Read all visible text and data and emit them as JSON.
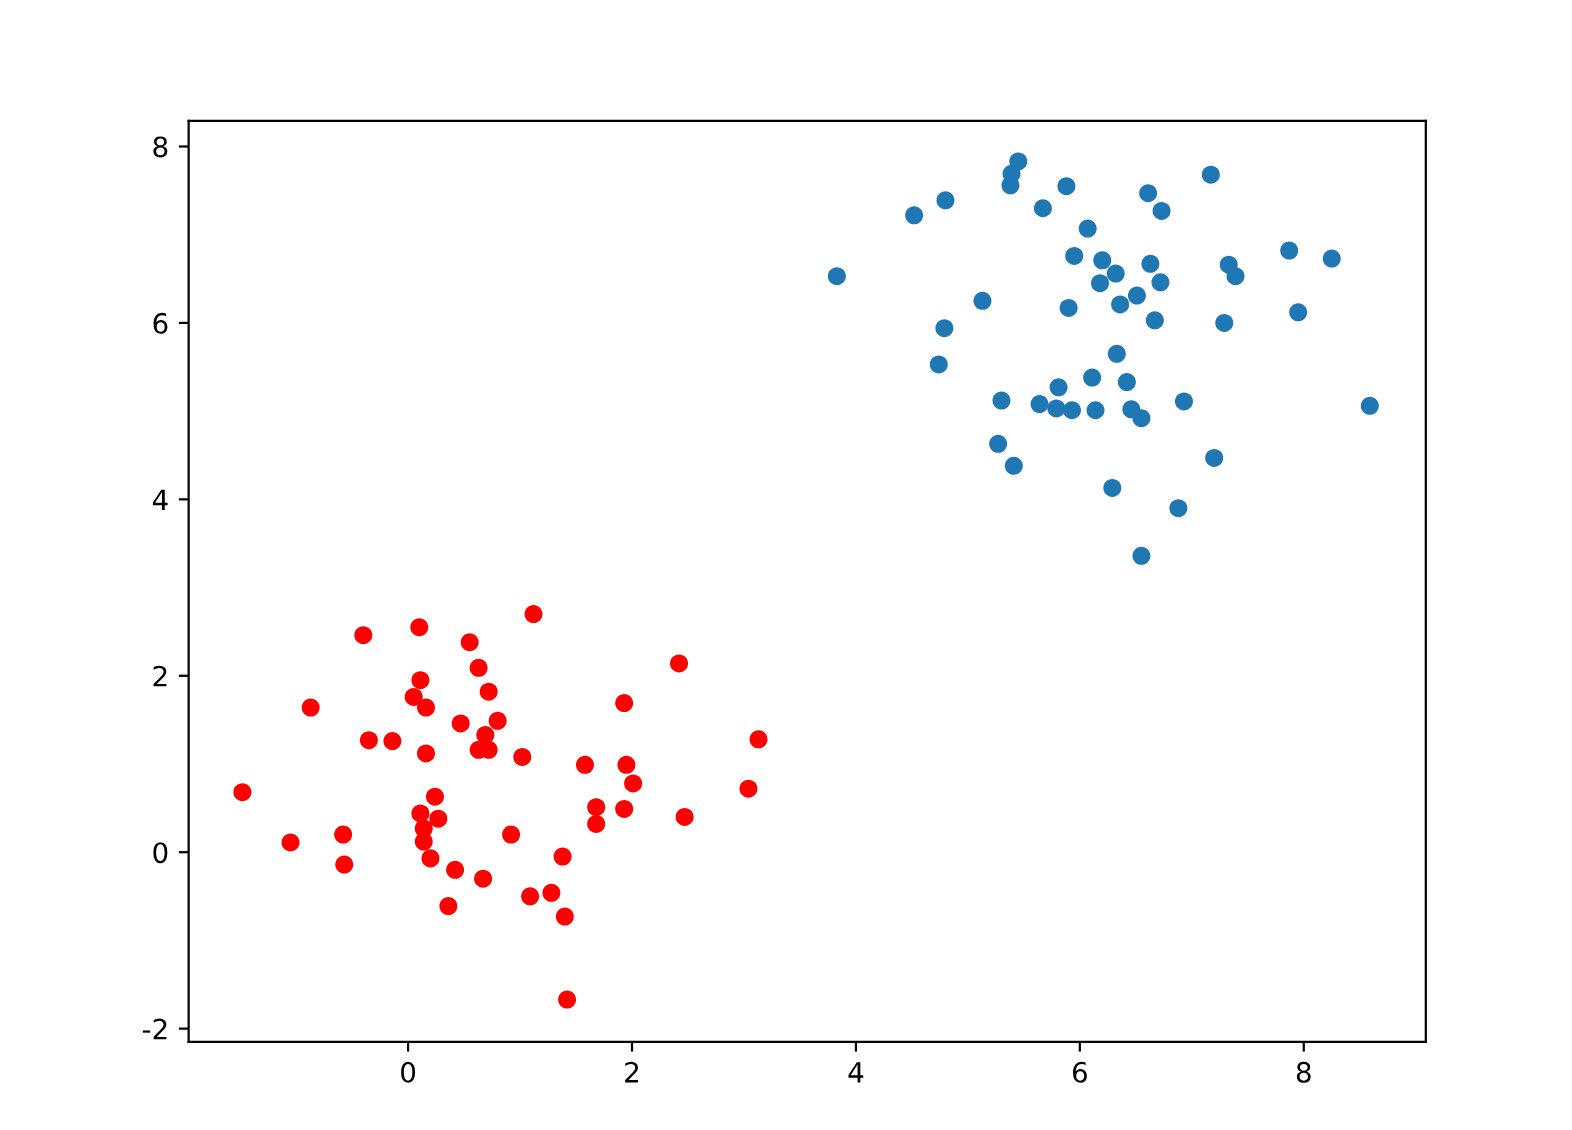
{
  "chart_data": {
    "type": "scatter",
    "xlim": [
      -1.96,
      9.09
    ],
    "ylim": [
      -2.15,
      8.29
    ],
    "xticks": [
      0,
      2,
      4,
      6,
      8
    ],
    "yticks": [
      -2,
      0,
      2,
      4,
      6,
      8
    ],
    "grid": false,
    "marker": "circle",
    "series": [
      {
        "color": "#ff0000",
        "x": [
          1.12,
          -0.4,
          0.1,
          0.55,
          0.63,
          2.42,
          0.11,
          0.05,
          0.16,
          0.72,
          -0.87,
          1.93,
          0.47,
          0.8,
          0.69,
          0.63,
          0.72,
          -0.35,
          -0.14,
          0.16,
          1.02,
          3.13,
          1.58,
          1.95,
          2.01,
          3.04,
          -1.48,
          0.24,
          1.68,
          1.68,
          1.93,
          2.47,
          0.11,
          0.27,
          0.14,
          0.14,
          0.2,
          0.92,
          -1.05,
          -0.58,
          -0.57,
          0.42,
          0.67,
          1.38,
          0.36,
          1.09,
          1.28,
          1.4,
          1.42
        ],
        "values": [
          2.7,
          2.46,
          2.55,
          2.38,
          2.09,
          2.14,
          1.95,
          1.76,
          1.64,
          1.82,
          1.64,
          1.69,
          1.46,
          1.49,
          1.33,
          1.16,
          1.16,
          1.27,
          1.26,
          1.12,
          1.08,
          1.28,
          0.99,
          0.99,
          0.78,
          0.72,
          0.68,
          0.63,
          0.51,
          0.32,
          0.49,
          0.4,
          0.44,
          0.38,
          0.27,
          0.12,
          -0.07,
          0.2,
          0.11,
          0.2,
          -0.14,
          -0.2,
          -0.3,
          -0.05,
          -0.61,
          -0.5,
          -0.46,
          -0.73,
          -1.67
        ]
      },
      {
        "color": "#1f77b4",
        "x": [
          5.45,
          5.39,
          5.38,
          5.88,
          7.17,
          6.61,
          6.73,
          4.8,
          4.52,
          5.67,
          6.07,
          5.95,
          7.87,
          8.25,
          3.83,
          6.2,
          6.32,
          6.18,
          6.63,
          6.72,
          7.33,
          7.39,
          6.51,
          6.36,
          5.13,
          5.9,
          6.67,
          7.29,
          7.95,
          4.79,
          4.74,
          6.33,
          6.11,
          6.42,
          5.81,
          5.3,
          5.64,
          5.79,
          5.93,
          6.14,
          6.46,
          6.55,
          6.93,
          8.59,
          5.27,
          5.41,
          7.2,
          6.29,
          6.88,
          6.55
        ],
        "values": [
          7.83,
          7.69,
          7.56,
          7.55,
          7.68,
          7.47,
          7.27,
          7.39,
          7.22,
          7.3,
          7.07,
          6.76,
          6.82,
          6.73,
          6.53,
          6.71,
          6.56,
          6.45,
          6.67,
          6.46,
          6.66,
          6.53,
          6.31,
          6.21,
          6.25,
          6.17,
          6.03,
          6.0,
          6.12,
          5.94,
          5.53,
          5.65,
          5.38,
          5.33,
          5.27,
          5.12,
          5.08,
          5.03,
          5.01,
          5.01,
          5.02,
          4.92,
          5.11,
          5.06,
          4.63,
          4.38,
          4.47,
          4.13,
          3.9,
          3.36
        ]
      }
    ]
  }
}
